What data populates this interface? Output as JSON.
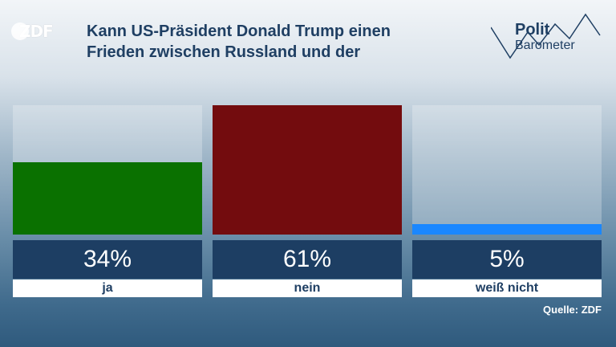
{
  "header": {
    "logo_text": "ZDF",
    "title_line1": "Kann US-Präsident Donald Trump einen",
    "title_line2": "Frieden zwischen Russland und der",
    "politbarometer_word1": "Polit",
    "politbarometer_word2": "Barometer"
  },
  "colors": {
    "ja": "#0a7100",
    "nein": "#730c0e",
    "weiss_nicht": "#1a87ff"
  },
  "chart_data": {
    "type": "bar",
    "title": "Kann US-Präsident Donald Trump einen Frieden zwischen Russland und der",
    "categories": [
      "ja",
      "nein",
      "weiß nicht"
    ],
    "values": [
      34,
      61,
      5
    ],
    "value_labels": [
      "34%",
      "61%",
      "5%"
    ],
    "ylim": [
      0,
      61
    ]
  },
  "footer": {
    "source": "Quelle: ZDF"
  }
}
